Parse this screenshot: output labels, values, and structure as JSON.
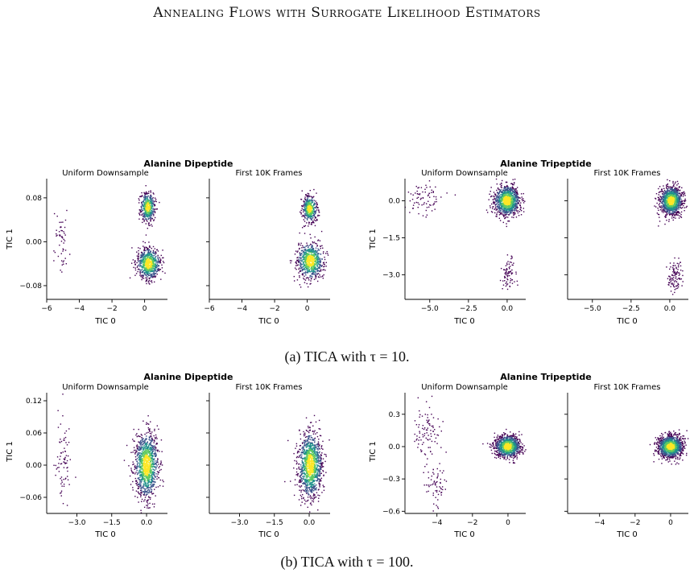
{
  "header": {
    "title": "Annealing Flows with Surrogate Likelihood Estimators"
  },
  "colormap": [
    "#440154",
    "#3b528b",
    "#21918c",
    "#5ec962",
    "#fde725"
  ],
  "figures": [
    {
      "caption": "(a) TICA with τ = 10.",
      "groups": [
        {
          "title": "Alanine Dipeptide",
          "panels": [
            {
              "title": "Uniform Downsample",
              "xlabel": "TIC 0",
              "ylabel": "TIC 1"
            },
            {
              "title": "First 10K Frames",
              "xlabel": "TIC 0",
              "ylabel": ""
            }
          ]
        },
        {
          "title": "Alanine Tripeptide",
          "panels": [
            {
              "title": "Uniform Downsample",
              "xlabel": "TIC 0",
              "ylabel": "TIC 1"
            },
            {
              "title": "First 10K Frames",
              "xlabel": "TIC 0",
              "ylabel": ""
            }
          ]
        }
      ]
    },
    {
      "caption": "(b) TICA with τ = 100.",
      "groups": [
        {
          "title": "Alanine Dipeptide",
          "panels": [
            {
              "title": "Uniform Downsample",
              "xlabel": "TIC 0",
              "ylabel": "TIC 1"
            },
            {
              "title": "First 10K Frames",
              "xlabel": "TIC 0",
              "ylabel": ""
            }
          ]
        },
        {
          "title": "Alanine Tripeptide",
          "panels": [
            {
              "title": "Uniform Downsample",
              "xlabel": "TIC 0",
              "ylabel": "TIC 1"
            },
            {
              "title": "First 10K Frames",
              "xlabel": "TIC 0",
              "ylabel": ""
            }
          ]
        }
      ]
    }
  ],
  "chart_data": [
    {
      "type": "scatter",
      "name": "(a) Alanine Dipeptide – Uniform Downsample",
      "title": "Uniform Downsample",
      "xlabel": "TIC 0",
      "ylabel": "TIC 1",
      "xlim": [
        -6,
        1.4
      ],
      "ylim": [
        -0.105,
        0.115
      ],
      "xticks": [
        -6,
        -4,
        -2,
        0
      ],
      "yticks": [
        -0.08,
        0.0,
        0.08
      ],
      "xticklabels": [
        "−6",
        "−4",
        "−2",
        "0"
      ],
      "yticklabels": [
        "−0.08",
        "0.00",
        "0.08"
      ],
      "clusters": [
        {
          "x": 0.2,
          "y": 0.063,
          "sx": 0.22,
          "sy": 0.013,
          "weight": 0.35
        },
        {
          "x": 0.25,
          "y": -0.04,
          "sx": 0.35,
          "sy": 0.014,
          "weight": 0.55
        },
        {
          "x": -5.1,
          "y": 0.0,
          "sx": 0.25,
          "sy": 0.035,
          "weight": 0.04
        }
      ]
    },
    {
      "type": "scatter",
      "name": "(a) Alanine Dipeptide – First 10K Frames",
      "title": "First 10K Frames",
      "xlabel": "TIC 0",
      "xlim": [
        -6,
        1.4
      ],
      "ylim": [
        -0.105,
        0.115
      ],
      "xticks": [
        -6,
        -4,
        -2,
        0
      ],
      "yticks": [
        -0.08,
        0.0,
        0.08
      ],
      "xticklabels": [
        "−6",
        "−4",
        "−2",
        "0"
      ],
      "clusters": [
        {
          "x": 0.15,
          "y": 0.06,
          "sx": 0.22,
          "sy": 0.012,
          "weight": 0.35
        },
        {
          "x": 0.2,
          "y": -0.035,
          "sx": 0.4,
          "sy": 0.016,
          "weight": 0.6
        }
      ]
    },
    {
      "type": "scatter",
      "name": "(a) Alanine Tripeptide – Uniform Downsample",
      "title": "Uniform Downsample",
      "xlabel": "TIC 0",
      "ylabel": "TIC 1",
      "xlim": [
        -6.6,
        1.2
      ],
      "ylim": [
        -4.0,
        0.9
      ],
      "xticks": [
        -5.0,
        -2.5,
        0.0
      ],
      "yticks": [
        0.0,
        -1.5,
        -3.0
      ],
      "xticklabels": [
        "−5.0",
        "−2.5",
        "0.0"
      ],
      "yticklabels": [
        "0.0",
        "−1.5",
        "−3.0"
      ],
      "clusters": [
        {
          "x": 0.0,
          "y": 0.0,
          "sx": 0.4,
          "sy": 0.3,
          "weight": 0.85
        },
        {
          "x": -5.3,
          "y": 0.0,
          "sx": 0.6,
          "sy": 0.35,
          "weight": 0.06
        },
        {
          "x": 0.1,
          "y": -3.0,
          "sx": 0.25,
          "sy": 0.35,
          "weight": 0.06
        }
      ]
    },
    {
      "type": "scatter",
      "name": "(a) Alanine Tripeptide – First 10K Frames",
      "title": "First 10K Frames",
      "xlabel": "TIC 0",
      "xlim": [
        -6.6,
        1.2
      ],
      "ylim": [
        -4.0,
        0.9
      ],
      "xticks": [
        -5.0,
        -2.5,
        0.0
      ],
      "yticks": [
        0.0,
        -1.5,
        -3.0
      ],
      "xticklabels": [
        "−5.0",
        "−2.5",
        "0.0"
      ],
      "clusters": [
        {
          "x": 0.1,
          "y": 0.0,
          "sx": 0.35,
          "sy": 0.28,
          "weight": 0.9
        },
        {
          "x": 0.3,
          "y": -3.0,
          "sx": 0.25,
          "sy": 0.4,
          "weight": 0.08
        }
      ]
    },
    {
      "type": "scatter",
      "name": "(b) Alanine Dipeptide – Uniform Downsample",
      "title": "Uniform Downsample",
      "xlabel": "TIC 0",
      "ylabel": "TIC 1",
      "xlim": [
        -4.3,
        0.9
      ],
      "ylim": [
        -0.09,
        0.135
      ],
      "xticks": [
        -3.0,
        -1.5,
        0.0
      ],
      "yticks": [
        0.12,
        0.06,
        0.0,
        -0.06
      ],
      "xticklabels": [
        "−3.0",
        "−1.5",
        "0.0"
      ],
      "yticklabels": [
        "0.12",
        "0.06",
        "0.00",
        "−0.06"
      ],
      "clusters": [
        {
          "x": 0.0,
          "y": 0.0,
          "sx": 0.25,
          "sy": 0.03,
          "weight": 0.9
        },
        {
          "x": -3.6,
          "y": 0.01,
          "sx": 0.15,
          "sy": 0.04,
          "weight": 0.06
        }
      ]
    },
    {
      "type": "scatter",
      "name": "(b) Alanine Dipeptide – First 10K Frames",
      "title": "First 10K Frames",
      "xlabel": "TIC 0",
      "xlim": [
        -4.3,
        0.9
      ],
      "ylim": [
        -0.09,
        0.135
      ],
      "xticks": [
        -3.0,
        -1.5,
        0.0
      ],
      "yticks": [
        0.12,
        0.06,
        0.0,
        -0.06
      ],
      "xticklabels": [
        "−3.0",
        "−1.5",
        "0.0"
      ],
      "clusters": [
        {
          "x": 0.05,
          "y": 0.0,
          "sx": 0.25,
          "sy": 0.03,
          "weight": 0.95
        }
      ]
    },
    {
      "type": "scatter",
      "name": "(b) Alanine Tripeptide – Uniform Downsample",
      "title": "Uniform Downsample",
      "xlabel": "TIC 0",
      "ylabel": "TIC 1",
      "xlim": [
        -5.8,
        1.0
      ],
      "ylim": [
        -0.62,
        0.5
      ],
      "xticks": [
        -4,
        -2,
        0
      ],
      "yticks": [
        0.3,
        0.0,
        -0.3,
        -0.6
      ],
      "xticklabels": [
        "−4",
        "−2",
        "0"
      ],
      "yticklabels": [
        "0.3",
        "0.0",
        "−0.3",
        "−0.6"
      ],
      "clusters": [
        {
          "x": 0.0,
          "y": 0.0,
          "sx": 0.35,
          "sy": 0.05,
          "weight": 0.8
        },
        {
          "x": -4.6,
          "y": 0.15,
          "sx": 0.4,
          "sy": 0.12,
          "weight": 0.07
        },
        {
          "x": -4.0,
          "y": -0.35,
          "sx": 0.3,
          "sy": 0.1,
          "weight": 0.05
        }
      ]
    },
    {
      "type": "scatter",
      "name": "(b) Alanine Tripeptide – First 10K Frames",
      "title": "First 10K Frames",
      "xlabel": "TIC 0",
      "xlim": [
        -5.8,
        1.0
      ],
      "ylim": [
        -0.62,
        0.5
      ],
      "xticks": [
        -4,
        -2,
        0
      ],
      "yticks": [
        0.3,
        0.0,
        -0.3,
        -0.6
      ],
      "xticklabels": [
        "−4",
        "−2",
        "0"
      ],
      "clusters": [
        {
          "x": 0.0,
          "y": 0.0,
          "sx": 0.35,
          "sy": 0.05,
          "weight": 0.95
        }
      ]
    }
  ]
}
